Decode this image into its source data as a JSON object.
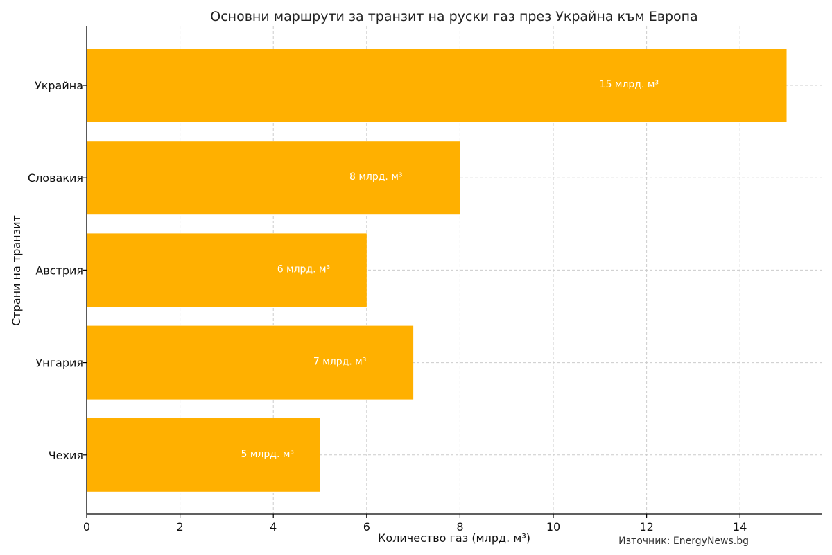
{
  "chart_data": {
    "type": "bar",
    "orientation": "horizontal",
    "title": "Основни маршрути за транзит на руски газ през Украйна към Европа",
    "xlabel": "Количество газ (млрд. м³)",
    "ylabel": "Страни на транзит",
    "categories": [
      "Украйна",
      "Словакия",
      "Австрия",
      "Унгария",
      "Чехия"
    ],
    "values": [
      15,
      8,
      6,
      7,
      5
    ],
    "data_labels": [
      "15 млрд. м³",
      "8 млрд. м³",
      "6 млрд. м³",
      "7 млрд. м³",
      "5 млрд. м³"
    ],
    "xlim": [
      0,
      15.75
    ],
    "xticks": [
      0,
      2,
      4,
      6,
      8,
      10,
      12,
      14
    ],
    "grid": true,
    "bar_color": "#FFB000",
    "source_note": "Източник: EnergyNews.bg"
  }
}
